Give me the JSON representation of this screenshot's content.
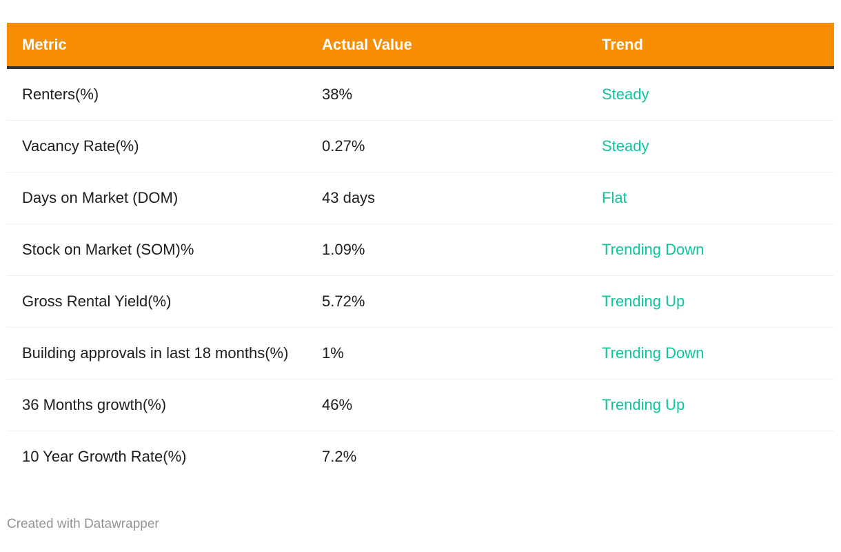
{
  "chart_data": {
    "type": "table",
    "columns": [
      "Metric",
      "Actual Value",
      "Trend"
    ],
    "rows": [
      [
        "Renters(%)",
        "38%",
        "Steady"
      ],
      [
        "Vacancy Rate(%)",
        "0.27%",
        "Steady"
      ],
      [
        "Days on Market (DOM)",
        "43 days",
        "Flat"
      ],
      [
        "Stock on Market (SOM)%",
        "1.09%",
        "Trending Down"
      ],
      [
        "Gross Rental Yield(%)",
        "5.72%",
        "Trending Up"
      ],
      [
        "Building approvals in last 18 months(%)",
        "1%",
        "Trending Down"
      ],
      [
        "36 Months growth(%)",
        "46%",
        "Trending Up"
      ],
      [
        "10 Year Growth Rate(%)",
        "7.2%",
        ""
      ]
    ],
    "title": "",
    "legend_position": "none",
    "grid": "row-dividers-only"
  },
  "footer": {
    "attribution": "Created with Datawrapper"
  },
  "colors": {
    "header_bg": "#F78D00",
    "header_text": "#FFFFFF",
    "header_border": "#333333",
    "body_text": "#1D1D1D",
    "trend_text": "#0DC49D",
    "row_divider": "#EEEEEE",
    "footer_text": "#949494"
  }
}
